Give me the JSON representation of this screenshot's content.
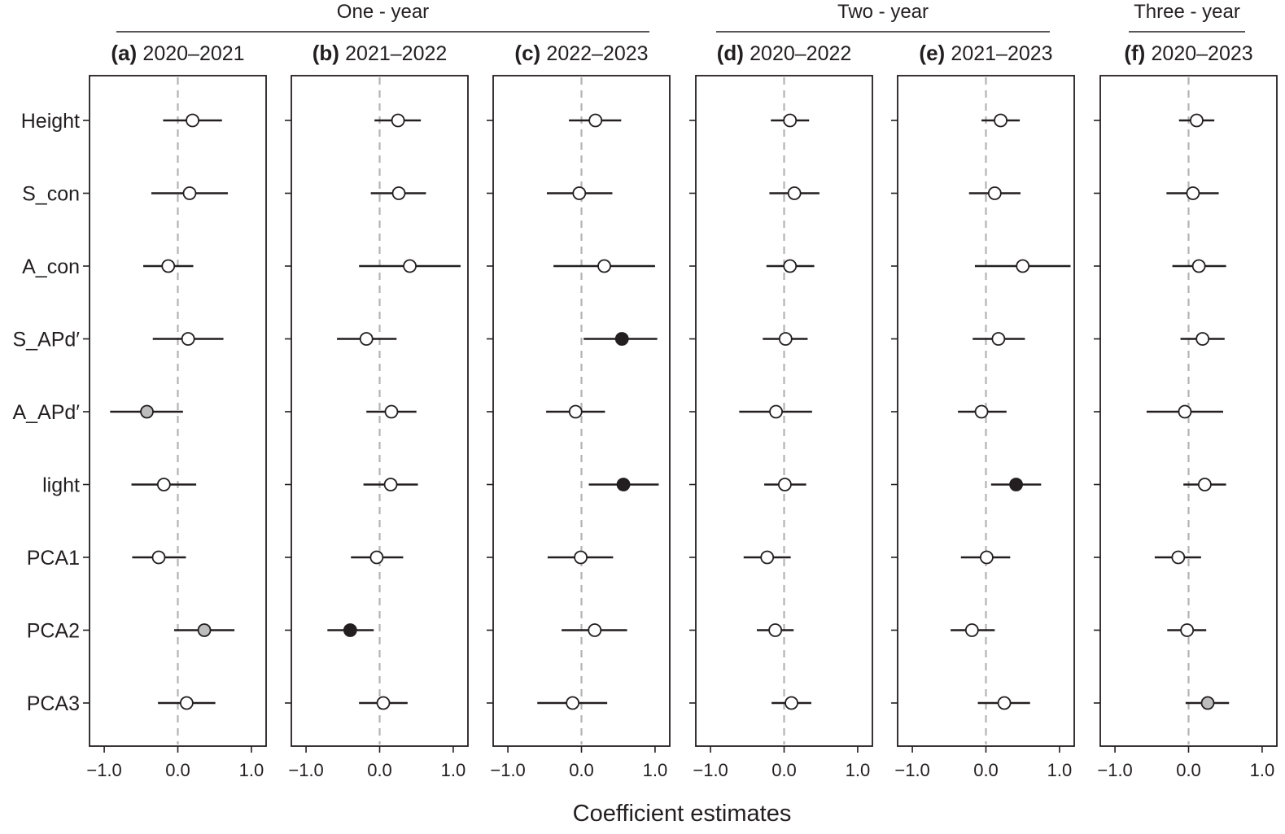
{
  "chart_data": {
    "type": "scatter",
    "subtype": "coefficient-plot-with-confidence-intervals",
    "xlabel": "Coefficient estimates",
    "variables": [
      "Height",
      "S_con",
      "A_con",
      "S_APd′",
      "A_APd′",
      "light",
      "PCA1",
      "PCA2",
      "PCA3"
    ],
    "x_ticks": [
      -1.0,
      0.0,
      1.0
    ],
    "x_tick_labels": [
      "−1.0",
      "0.0",
      "1.0"
    ],
    "xlim": [
      -1.2,
      1.2
    ],
    "reference_line": 0,
    "point_fill_legend": {
      "white": "#ffffff",
      "grey": "#bdbdbd",
      "black": "#231f20"
    },
    "groups": [
      {
        "label": "One - year",
        "panels": [
          0,
          1,
          2
        ]
      },
      {
        "label": "Two - year",
        "panels": [
          3,
          4
        ]
      },
      {
        "label": "Three - year",
        "panels": [
          5
        ]
      }
    ],
    "panels": [
      {
        "letter": "(a)",
        "period": "2020–2021",
        "estimates": [
          {
            "est": 0.2,
            "lo": -0.2,
            "hi": 0.6,
            "fill": "white"
          },
          {
            "est": 0.16,
            "lo": -0.36,
            "hi": 0.68,
            "fill": "white"
          },
          {
            "est": -0.13,
            "lo": -0.47,
            "hi": 0.21,
            "fill": "white"
          },
          {
            "est": 0.14,
            "lo": -0.34,
            "hi": 0.62,
            "fill": "white"
          },
          {
            "est": -0.42,
            "lo": -0.92,
            "hi": 0.07,
            "fill": "grey"
          },
          {
            "est": -0.19,
            "lo": -0.63,
            "hi": 0.25,
            "fill": "white"
          },
          {
            "est": -0.26,
            "lo": -0.62,
            "hi": 0.11,
            "fill": "white"
          },
          {
            "est": 0.36,
            "lo": -0.05,
            "hi": 0.77,
            "fill": "grey"
          },
          {
            "est": 0.12,
            "lo": -0.27,
            "hi": 0.51,
            "fill": "white"
          }
        ]
      },
      {
        "letter": "(b)",
        "period": "2021–2022",
        "estimates": [
          {
            "est": 0.25,
            "lo": -0.07,
            "hi": 0.56,
            "fill": "white"
          },
          {
            "est": 0.26,
            "lo": -0.12,
            "hi": 0.63,
            "fill": "white"
          },
          {
            "est": 0.41,
            "lo": -0.28,
            "hi": 1.1,
            "fill": "white"
          },
          {
            "est": -0.18,
            "lo": -0.58,
            "hi": 0.23,
            "fill": "white"
          },
          {
            "est": 0.16,
            "lo": -0.18,
            "hi": 0.5,
            "fill": "white"
          },
          {
            "est": 0.15,
            "lo": -0.22,
            "hi": 0.52,
            "fill": "white"
          },
          {
            "est": -0.04,
            "lo": -0.39,
            "hi": 0.32,
            "fill": "white"
          },
          {
            "est": -0.4,
            "lo": -0.71,
            "hi": -0.08,
            "fill": "black"
          },
          {
            "est": 0.05,
            "lo": -0.28,
            "hi": 0.38,
            "fill": "white"
          }
        ]
      },
      {
        "letter": "(c)",
        "period": "2022–2023",
        "estimates": [
          {
            "est": 0.19,
            "lo": -0.17,
            "hi": 0.54,
            "fill": "white"
          },
          {
            "est": -0.03,
            "lo": -0.47,
            "hi": 0.42,
            "fill": "white"
          },
          {
            "est": 0.31,
            "lo": -0.38,
            "hi": 1.0,
            "fill": "white"
          },
          {
            "est": 0.55,
            "lo": 0.03,
            "hi": 1.03,
            "fill": "black"
          },
          {
            "est": -0.08,
            "lo": -0.48,
            "hi": 0.32,
            "fill": "white"
          },
          {
            "est": 0.57,
            "lo": 0.1,
            "hi": 1.05,
            "fill": "black"
          },
          {
            "est": -0.01,
            "lo": -0.46,
            "hi": 0.43,
            "fill": "white"
          },
          {
            "est": 0.18,
            "lo": -0.27,
            "hi": 0.62,
            "fill": "white"
          },
          {
            "est": -0.12,
            "lo": -0.6,
            "hi": 0.35,
            "fill": "white"
          }
        ]
      },
      {
        "letter": "(d)",
        "period": "2020–2022",
        "estimates": [
          {
            "est": 0.08,
            "lo": -0.18,
            "hi": 0.34,
            "fill": "white"
          },
          {
            "est": 0.14,
            "lo": -0.2,
            "hi": 0.48,
            "fill": "white"
          },
          {
            "est": 0.08,
            "lo": -0.24,
            "hi": 0.41,
            "fill": "white"
          },
          {
            "est": 0.02,
            "lo": -0.29,
            "hi": 0.32,
            "fill": "white"
          },
          {
            "est": -0.11,
            "lo": -0.61,
            "hi": 0.38,
            "fill": "white"
          },
          {
            "est": 0.01,
            "lo": -0.27,
            "hi": 0.3,
            "fill": "white"
          },
          {
            "est": -0.23,
            "lo": -0.55,
            "hi": 0.09,
            "fill": "white"
          },
          {
            "est": -0.12,
            "lo": -0.37,
            "hi": 0.13,
            "fill": "white"
          },
          {
            "est": 0.1,
            "lo": -0.17,
            "hi": 0.37,
            "fill": "white"
          }
        ]
      },
      {
        "letter": "(e)",
        "period": "2021–2023",
        "estimates": [
          {
            "est": 0.2,
            "lo": -0.06,
            "hi": 0.46,
            "fill": "white"
          },
          {
            "est": 0.12,
            "lo": -0.23,
            "hi": 0.47,
            "fill": "white"
          },
          {
            "est": 0.5,
            "lo": -0.15,
            "hi": 1.15,
            "fill": "white"
          },
          {
            "est": 0.17,
            "lo": -0.18,
            "hi": 0.53,
            "fill": "white"
          },
          {
            "est": -0.06,
            "lo": -0.38,
            "hi": 0.28,
            "fill": "white"
          },
          {
            "est": 0.41,
            "lo": 0.07,
            "hi": 0.75,
            "fill": "black"
          },
          {
            "est": 0.01,
            "lo": -0.34,
            "hi": 0.33,
            "fill": "white"
          },
          {
            "est": -0.19,
            "lo": -0.48,
            "hi": 0.12,
            "fill": "white"
          },
          {
            "est": 0.25,
            "lo": -0.11,
            "hi": 0.6,
            "fill": "white"
          }
        ]
      },
      {
        "letter": "(f)",
        "period": "2020–2023",
        "estimates": [
          {
            "est": 0.11,
            "lo": -0.13,
            "hi": 0.35,
            "fill": "white"
          },
          {
            "est": 0.06,
            "lo": -0.3,
            "hi": 0.41,
            "fill": "white"
          },
          {
            "est": 0.14,
            "lo": -0.22,
            "hi": 0.51,
            "fill": "white"
          },
          {
            "est": 0.19,
            "lo": -0.11,
            "hi": 0.49,
            "fill": "white"
          },
          {
            "est": -0.05,
            "lo": -0.57,
            "hi": 0.47,
            "fill": "white"
          },
          {
            "est": 0.22,
            "lo": -0.07,
            "hi": 0.51,
            "fill": "white"
          },
          {
            "est": -0.14,
            "lo": -0.46,
            "hi": 0.17,
            "fill": "white"
          },
          {
            "est": -0.02,
            "lo": -0.29,
            "hi": 0.24,
            "fill": "white"
          },
          {
            "est": 0.26,
            "lo": -0.04,
            "hi": 0.55,
            "fill": "grey"
          }
        ]
      }
    ]
  }
}
